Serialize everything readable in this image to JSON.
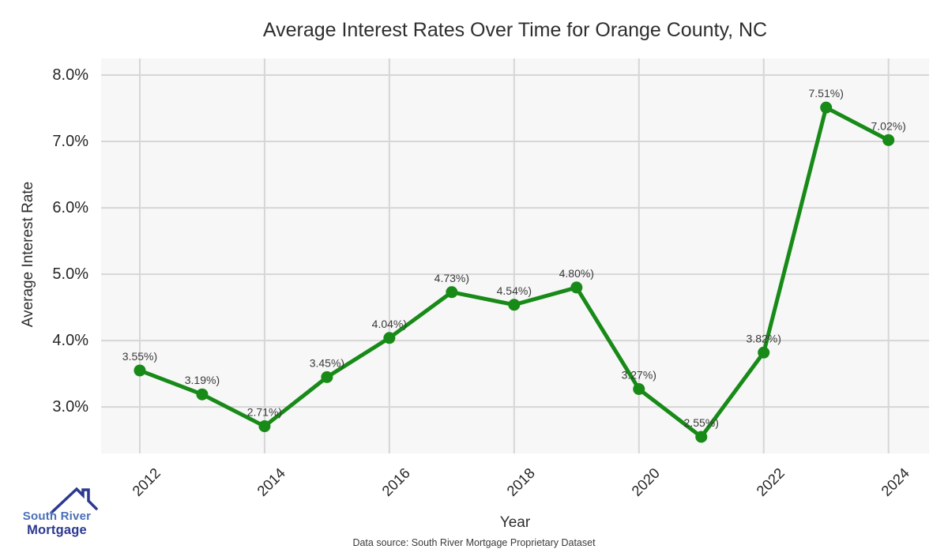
{
  "chart_data": {
    "type": "line",
    "title": "Average Interest Rates Over Time for Orange County, NC",
    "xlabel": "Year",
    "ylabel": "Average Interest Rate",
    "x": [
      2012,
      2013,
      2014,
      2015,
      2016,
      2017,
      2018,
      2019,
      2020,
      2021,
      2022,
      2023,
      2024
    ],
    "values": [
      3.55,
      3.19,
      2.71,
      3.45,
      4.04,
      4.73,
      4.54,
      4.8,
      3.27,
      2.55,
      3.82,
      7.51,
      7.02
    ],
    "point_labels": [
      "3.55%)",
      "3.19%)",
      "2.71%)",
      "3.45%)",
      "4.04%)",
      "4.73%)",
      "4.54%)",
      "4.80%)",
      "3.27%)",
      "2.55%)",
      "3.82%)",
      "7.51%)",
      "7.02%)"
    ],
    "x_ticks": [
      2012,
      2014,
      2016,
      2018,
      2020,
      2022,
      2024
    ],
    "y_ticks": [
      "8.0%",
      "7.0%",
      "6.0%",
      "5.0%",
      "4.0%",
      "3.0%"
    ],
    "y_tick_values": [
      8,
      7,
      6,
      5,
      4,
      3
    ],
    "xlim": [
      2011.38,
      2024.65
    ],
    "ylim": [
      2.3,
      8.25
    ],
    "grid": true,
    "legend": "none"
  },
  "colors": {
    "line": "#178a17",
    "marker": "#178a17",
    "plot_background": "#f7f7f7",
    "gridline": "#d6d6d6",
    "point_label_text": "#3a3a3a",
    "axis_text": "#262626",
    "logo_blue": "#4a6fb8",
    "logo_navy": "#2b3990"
  },
  "footer": {
    "source_note": "Data source: South River Mortgage Proprietary Dataset"
  },
  "logo": {
    "line1": "South River",
    "line2": "Mortgage"
  }
}
